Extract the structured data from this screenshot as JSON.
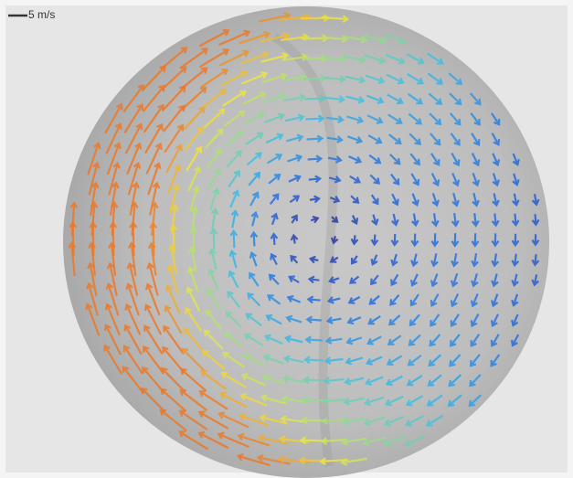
{
  "scale_label": "5 m/s"
}
